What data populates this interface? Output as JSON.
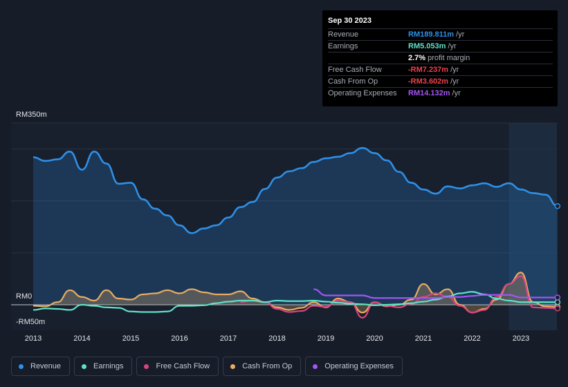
{
  "tooltip": {
    "date": "Sep 30 2023",
    "rows": [
      {
        "label": "Revenue",
        "value": "RM189.811m",
        "unit": "/yr",
        "color": "#2e90e8"
      },
      {
        "label": "Earnings",
        "value": "RM5.053m",
        "unit": "/yr",
        "color": "#5fe3c7"
      },
      {
        "label": "",
        "value": "2.7%",
        "unit": "profit margin",
        "color": "#ffffff"
      },
      {
        "label": "Free Cash Flow",
        "value": "-RM7.237m",
        "unit": "/yr",
        "color": "#f0414d"
      },
      {
        "label": "Cash From Op",
        "value": "-RM3.602m",
        "unit": "/yr",
        "color": "#f0414d"
      },
      {
        "label": "Operating Expenses",
        "value": "RM14.132m",
        "unit": "/yr",
        "color": "#a554f5"
      }
    ]
  },
  "legend": [
    {
      "label": "Revenue",
      "color": "#2e90e8"
    },
    {
      "label": "Earnings",
      "color": "#5fe3c7"
    },
    {
      "label": "Free Cash Flow",
      "color": "#d9447f"
    },
    {
      "label": "Cash From Op",
      "color": "#e9ad63"
    },
    {
      "label": "Operating Expenses",
      "color": "#a554f5"
    }
  ],
  "chart_data": {
    "type": "line",
    "title": "",
    "xlabel": "",
    "ylabel": "",
    "y_labels": [
      "RM350m",
      "RM0",
      "-RM50m"
    ],
    "x_ticks": [
      "2013",
      "2014",
      "2015",
      "2016",
      "2017",
      "2018",
      "2019",
      "2020",
      "2021",
      "2022",
      "2023"
    ],
    "ylim": [
      -50,
      350
    ],
    "xlim": [
      2012.5,
      2023.75
    ],
    "highlight_start": 2022.75,
    "series": [
      {
        "name": "Revenue",
        "color": "#2e90e8",
        "fill": true,
        "x": [
          2013.0,
          2013.25,
          2013.5,
          2013.75,
          2014.0,
          2014.25,
          2014.5,
          2014.75,
          2015.0,
          2015.25,
          2015.5,
          2015.75,
          2016.0,
          2016.25,
          2016.5,
          2016.75,
          2017.0,
          2017.25,
          2017.5,
          2017.75,
          2018.0,
          2018.25,
          2018.5,
          2018.75,
          2019.0,
          2019.25,
          2019.5,
          2019.75,
          2020.0,
          2020.25,
          2020.5,
          2020.75,
          2021.0,
          2021.25,
          2021.5,
          2021.75,
          2022.0,
          2022.25,
          2022.5,
          2022.75,
          2023.0,
          2023.25,
          2023.5,
          2023.75
        ],
        "values": [
          284,
          277,
          280,
          295,
          260,
          295,
          272,
          233,
          235,
          203,
          185,
          172,
          153,
          138,
          147,
          153,
          168,
          188,
          198,
          223,
          245,
          257,
          263,
          275,
          282,
          285,
          292,
          302,
          292,
          278,
          256,
          235,
          222,
          214,
          228,
          224,
          230,
          234,
          227,
          234,
          222,
          215,
          212,
          190
        ]
      },
      {
        "name": "Earnings",
        "color": "#5fe3c7",
        "fill": false,
        "x": [
          2013.0,
          2013.25,
          2013.5,
          2013.75,
          2014.0,
          2014.25,
          2014.5,
          2014.75,
          2015.0,
          2015.25,
          2015.5,
          2015.75,
          2016.0,
          2016.25,
          2016.5,
          2016.75,
          2017.0,
          2017.25,
          2017.5,
          2017.75,
          2018.0,
          2018.25,
          2018.5,
          2018.75,
          2019.0,
          2019.25,
          2019.5,
          2019.75,
          2020.0,
          2020.25,
          2020.5,
          2020.75,
          2021.0,
          2021.25,
          2021.5,
          2021.75,
          2022.0,
          2022.25,
          2022.5,
          2022.75,
          2023.0,
          2023.25,
          2023.5,
          2023.75
        ],
        "values": [
          -10,
          -7,
          -8,
          -10,
          0,
          -2,
          -5,
          -6,
          -13,
          -14,
          -14,
          -13,
          -2,
          -2,
          -1,
          3,
          6,
          8,
          8,
          5,
          8,
          7,
          7,
          8,
          6,
          4,
          2,
          1,
          -1,
          0,
          1,
          3,
          6,
          10,
          16,
          22,
          25,
          20,
          12,
          8,
          5,
          5,
          5,
          5
        ]
      },
      {
        "name": "Free Cash Flow",
        "color": "#d9447f",
        "fill": false,
        "x": [
          2017.25,
          2017.5,
          2017.75,
          2018.0,
          2018.25,
          2018.5,
          2018.75,
          2019.0,
          2019.25,
          2019.5,
          2019.75,
          2020.0,
          2020.25,
          2020.5,
          2020.75,
          2021.0,
          2021.25,
          2021.5,
          2021.75,
          2022.0,
          2022.25,
          2022.5,
          2022.75,
          2023.0,
          2023.25,
          2023.5,
          2023.75
        ],
        "values": [
          5,
          8,
          5,
          -8,
          -14,
          -12,
          -2,
          -4,
          8,
          5,
          -25,
          5,
          -2,
          -5,
          2,
          15,
          22,
          15,
          -2,
          -15,
          -10,
          15,
          40,
          55,
          -5,
          -6,
          -7
        ]
      },
      {
        "name": "Cash From Op",
        "color": "#e9ad63",
        "fill": true,
        "x": [
          2013.0,
          2013.25,
          2013.5,
          2013.75,
          2014.0,
          2014.25,
          2014.5,
          2014.75,
          2015.0,
          2015.25,
          2015.5,
          2015.75,
          2016.0,
          2016.25,
          2016.5,
          2016.75,
          2017.0,
          2017.25,
          2017.5,
          2017.75,
          2018.0,
          2018.25,
          2018.5,
          2018.75,
          2019.0,
          2019.25,
          2019.5,
          2019.75,
          2020.0,
          2020.25,
          2020.5,
          2020.75,
          2021.0,
          2021.25,
          2021.5,
          2021.75,
          2022.0,
          2022.25,
          2022.5,
          2022.75,
          2023.0,
          2023.25,
          2023.5,
          2023.75
        ],
        "values": [
          -2,
          -3,
          5,
          28,
          15,
          8,
          28,
          12,
          10,
          20,
          22,
          28,
          22,
          30,
          24,
          20,
          20,
          26,
          12,
          5,
          -5,
          -10,
          -6,
          5,
          -5,
          12,
          5,
          -15,
          5,
          -3,
          0,
          10,
          40,
          20,
          30,
          0,
          -15,
          -8,
          10,
          40,
          62,
          5,
          -3,
          -4
        ]
      },
      {
        "name": "Operating Expenses",
        "color": "#a554f5",
        "fill": false,
        "x": [
          2018.75,
          2019.0,
          2019.25,
          2019.5,
          2019.75,
          2020.0,
          2020.25,
          2020.5,
          2020.75,
          2021.0,
          2021.25,
          2021.5,
          2021.75,
          2022.0,
          2022.25,
          2022.5,
          2022.75,
          2023.0,
          2023.25,
          2023.5,
          2023.75
        ],
        "values": [
          30,
          18,
          18,
          18,
          18,
          13,
          13,
          13,
          13,
          13,
          13,
          15,
          15,
          17,
          19,
          19,
          19,
          14,
          14,
          14,
          14
        ]
      }
    ]
  }
}
